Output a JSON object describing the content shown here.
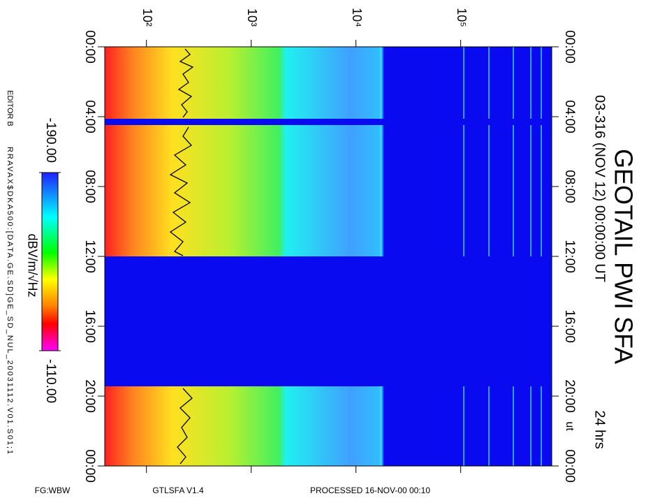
{
  "chart_data": {
    "type": "spectrogram",
    "title": "GEOTAIL PWI SFA",
    "subtitle": "03-316 (NOV 12) 00:00:00 UT",
    "duration_label": "24 hrs",
    "xscale": "log",
    "xlim": [
      40,
      740000
    ],
    "xticks": [
      {
        "value": 100,
        "label": "10²"
      },
      {
        "value": 1000,
        "label": "10³"
      },
      {
        "value": 10000,
        "label": "10⁴"
      },
      {
        "value": 100000,
        "label": "10⁵"
      }
    ],
    "ylim": [
      0,
      24
    ],
    "yticks": [
      {
        "value": 0,
        "label": "00:00"
      },
      {
        "value": 4,
        "label": "04:00"
      },
      {
        "value": 8,
        "label": "08:00"
      },
      {
        "value": 12,
        "label": "12:00"
      },
      {
        "value": 16,
        "label": "16:00"
      },
      {
        "value": 20,
        "label": "20:00"
      },
      {
        "value": 24,
        "label": "00:00"
      }
    ],
    "y_axis_unit": "ut",
    "colorbar": {
      "label": "dBV/m/√Hz",
      "clim": [
        -190,
        -110
      ],
      "ticks": [
        {
          "value": -190,
          "label": "-190.00"
        },
        {
          "value": -110,
          "label": "-110.00"
        }
      ]
    }
  },
  "editor": "EDITOR B",
  "source_file": "RRAVAX$DKA500:[DATA.GE.SD]GE_SD_NUL_20031112.V01.S01;1",
  "footer": {
    "fg": "FG:WBW",
    "program": "GTLSFA   V1.4",
    "processed": "PROCESSED 16-NOV-00  00:10"
  }
}
